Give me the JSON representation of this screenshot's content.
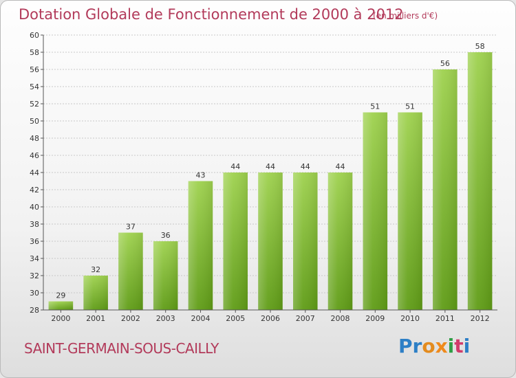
{
  "chart_data": {
    "type": "bar",
    "title": "Dotation Globale de Fonctionnement de 2000 à 2012",
    "subtitle": "(en milliers d'€)",
    "categories": [
      "2000",
      "2001",
      "2002",
      "2003",
      "2004",
      "2005",
      "2006",
      "2007",
      "2008",
      "2009",
      "2010",
      "2011",
      "2012"
    ],
    "values": [
      29,
      32,
      37,
      36,
      43,
      44,
      44,
      44,
      44,
      51,
      51,
      56,
      58
    ],
    "ylim": [
      28,
      60
    ],
    "yticks": [
      28,
      30,
      32,
      34,
      36,
      38,
      40,
      42,
      44,
      46,
      48,
      50,
      52,
      54,
      56,
      58,
      60
    ],
    "grid": true,
    "bar_color_top": "#9fd24f",
    "bar_color_bottom": "#5f9c16"
  },
  "footer": {
    "commune": "SAINT-GERMAIN-SOUS-CAILLY",
    "logo": [
      "Pr",
      "o",
      "x",
      "i",
      "t",
      "i"
    ]
  },
  "colors": {
    "accent": "#b23a5a"
  }
}
